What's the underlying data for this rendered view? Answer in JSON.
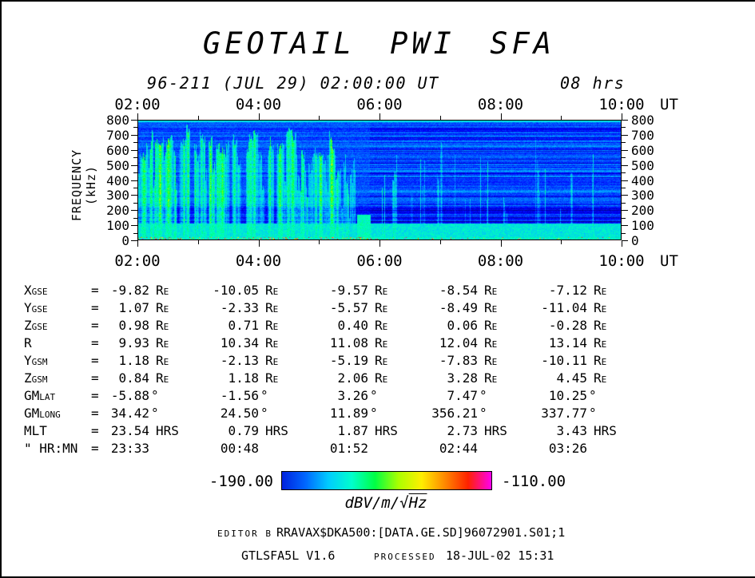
{
  "page": {
    "title": "GEOTAIL PWI SFA",
    "start_label": "96-211 (JUL 29) 02:00:00 UT",
    "duration_label": "08 hrs"
  },
  "chart_data": {
    "type": "heatmap",
    "title": "GEOTAIL PWI SFA",
    "subtitle": "96-211 (JUL 29) 02:00:00 UT, duration 08 hrs",
    "x_axis": {
      "label": "UT",
      "tick_labels": [
        "02:00",
        "04:00",
        "06:00",
        "08:00",
        "10:00"
      ],
      "tick_hours": [
        2,
        4,
        6,
        8,
        10
      ],
      "minor_tick_step_hours": 1,
      "range_hours": [
        2,
        10
      ]
    },
    "y_axis": {
      "label": "FREQUENCY (kHz)",
      "tick_values": [
        800,
        700,
        600,
        500,
        400,
        300,
        200,
        100,
        0
      ],
      "minor_tick_step": 50,
      "range": [
        0,
        800
      ]
    },
    "colorbar": {
      "min": -190.0,
      "max": -110.0,
      "min_label": "-190.00",
      "max_label": "-110.00",
      "unit_prefix": "dBV/m/√",
      "unit_radicand": "Hz",
      "gradient": [
        "#0022dd",
        "#0066ff",
        "#00ccff",
        "#00ffcc",
        "#00ff44",
        "#aaff00",
        "#ffee00",
        "#ff8800",
        "#ff2200",
        "#ff00ee"
      ]
    },
    "features": [
      "blue broadband background noise across 0-800 kHz",
      "dense cyan-green vertical burst emissions from 02:00 to about 05:45 UT reaching 800 kHz",
      "horizontally striped quieter blue background with sparse narrow vertical lines after 06:00 UT",
      "darker quiet band near 110-220 kHz across the whole interval",
      "bright cyan continuum band below about 100 kHz",
      "intermittent intense red-orange emission line at the lowest frequencies"
    ]
  },
  "ephemeris": {
    "rows": [
      {
        "base": "X",
        "sub": "GSE",
        "values": [
          "-9.82",
          "-10.05",
          "-9.57",
          "-8.54",
          "-7.12"
        ],
        "unit": "RE"
      },
      {
        "base": "Y",
        "sub": "GSE",
        "values": [
          "1.07",
          "-2.33",
          "-5.57",
          "-8.49",
          "-11.04"
        ],
        "unit": "RE"
      },
      {
        "base": "Z",
        "sub": "GSE",
        "values": [
          "0.98",
          "0.71",
          "0.40",
          "0.06",
          "-0.28"
        ],
        "unit": "RE"
      },
      {
        "base": "R",
        "sub": "",
        "values": [
          "9.93",
          "10.34",
          "11.08",
          "12.04",
          "13.14"
        ],
        "unit": "RE"
      },
      {
        "base": "Y",
        "sub": "GSM",
        "values": [
          "1.18",
          "-2.13",
          "-5.19",
          "-7.83",
          "-10.11"
        ],
        "unit": "RE"
      },
      {
        "base": "Z",
        "sub": "GSM",
        "values": [
          "0.84",
          "1.18",
          "2.06",
          "3.28",
          "4.45"
        ],
        "unit": "RE"
      },
      {
        "base": "GM",
        "sub": "LAT",
        "values": [
          "-5.88",
          "-1.56",
          "3.26",
          "7.47",
          "10.25"
        ],
        "unit": "°"
      },
      {
        "base": "GM",
        "sub": "LONG",
        "values": [
          "34.42",
          "24.50",
          "11.89",
          "356.21",
          "337.77"
        ],
        "unit": "°"
      },
      {
        "base": "MLT",
        "sub": "",
        "values": [
          "23.54",
          "0.79",
          "1.87",
          "2.73",
          "3.43"
        ],
        "unit": "HRS"
      },
      {
        "base": "\" HR:MN",
        "sub": "",
        "values": [
          "23:33",
          "00:48",
          "01:52",
          "02:44",
          "03:26"
        ],
        "unit": ""
      }
    ]
  },
  "footer": {
    "editor_label": "EDITOR B",
    "file_path": "RRAVAX$DKA500:[DATA.GE.SD]96072901.S01;1",
    "program_version": "GTLSFA5L V1.6",
    "processed_label": "PROCESSED",
    "processed_value": "18-JUL-02  15:31"
  }
}
